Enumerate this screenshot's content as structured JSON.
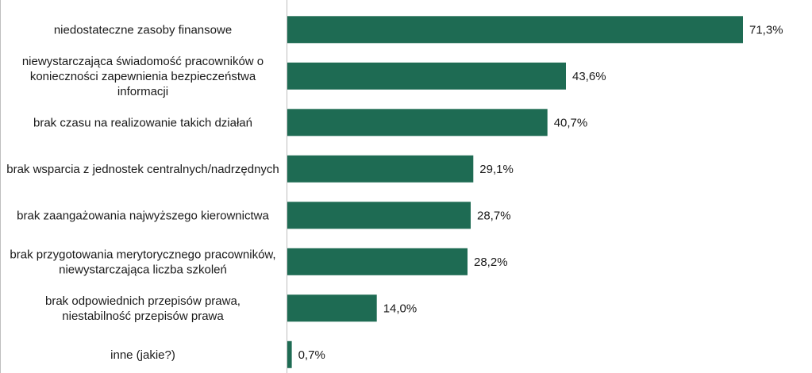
{
  "chart_data": {
    "type": "bar",
    "orientation": "horizontal",
    "title": "",
    "xlabel": "",
    "ylabel": "",
    "xlim": [
      0,
      75
    ],
    "grid": false,
    "legend": "none",
    "color": "#1e6b53",
    "categories": [
      [
        "niedostateczne zasoby finansowe"
      ],
      [
        "niewystarczająca świadomość pracowników o",
        "konieczności zapewnienia bezpieczeństwa",
        "informacji"
      ],
      [
        "brak czasu na realizowanie takich działań"
      ],
      [
        "brak wsparcia z jednostek centralnych/nadrzędnych"
      ],
      [
        "brak zaangażowania najwyższego kierownictwa"
      ],
      [
        "brak przygotowania merytorycznego pracowników,",
        "niewystarczająca liczba szkoleń"
      ],
      [
        "brak odpowiednich przepisów prawa,",
        "niestabilność przepisów prawa"
      ],
      [
        "inne (jakie?)"
      ]
    ],
    "values": [
      71.3,
      43.6,
      40.7,
      29.1,
      28.7,
      28.2,
      14.0,
      0.7
    ],
    "value_labels": [
      "71,3%",
      "43,6%",
      "40,7%",
      "29,1%",
      "28,7%",
      "28,2%",
      "14,0%",
      "0,7%"
    ]
  }
}
